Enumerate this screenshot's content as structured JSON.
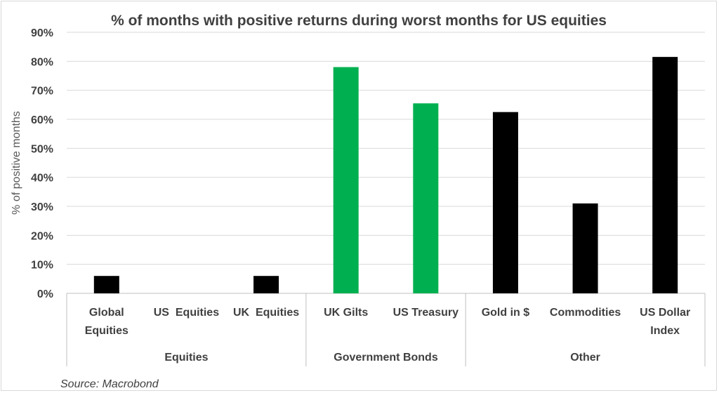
{
  "chart_data": {
    "type": "bar",
    "title": "% of months with positive returns during worst months for US equities",
    "ylabel": "% of positive months",
    "xlabel": "",
    "ylim": [
      0,
      90
    ],
    "yticks": [
      "0%",
      "10%",
      "20%",
      "30%",
      "40%",
      "50%",
      "60%",
      "70%",
      "80%",
      "90%"
    ],
    "grid": true,
    "categories": [
      {
        "lines": [
          "Global",
          "Equities"
        ],
        "value": 6,
        "color": "#000000"
      },
      {
        "lines": [
          "US  Equities"
        ],
        "value": 0,
        "color": "#000000"
      },
      {
        "lines": [
          "UK  Equities"
        ],
        "value": 6,
        "color": "#000000"
      },
      {
        "lines": [
          "UK Gilts"
        ],
        "value": 78,
        "color": "#00b050"
      },
      {
        "lines": [
          "US Treasury"
        ],
        "value": 65.5,
        "color": "#00b050"
      },
      {
        "lines": [
          "Gold in $"
        ],
        "value": 62.5,
        "color": "#000000"
      },
      {
        "lines": [
          "Commodities"
        ],
        "value": 31,
        "color": "#000000"
      },
      {
        "lines": [
          "US Dollar",
          "Index"
        ],
        "value": 81.5,
        "color": "#000000"
      }
    ],
    "groups": [
      {
        "label": "Equities",
        "count": 3
      },
      {
        "label": "Government Bonds",
        "count": 2
      },
      {
        "label": "Other",
        "count": 3
      }
    ],
    "colors": {
      "equities_other": "#000000",
      "government_bonds": "#00b050"
    }
  },
  "source": "Source: Macrobond"
}
